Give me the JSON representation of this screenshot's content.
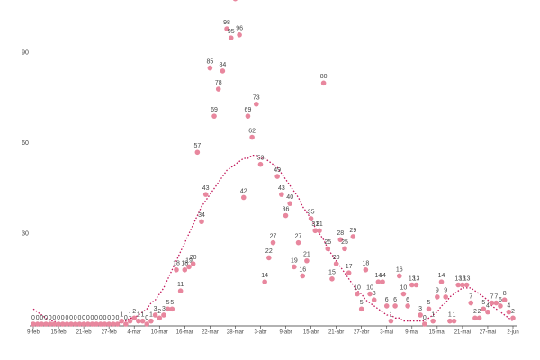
{
  "chart_data": {
    "type": "scatter",
    "categories": [
      "9-feb",
      null,
      null,
      null,
      null,
      null,
      "15-feb",
      null,
      null,
      null,
      null,
      null,
      "21-feb",
      null,
      null,
      null,
      null,
      null,
      "27-feb",
      null,
      null,
      null,
      null,
      null,
      "4-mar",
      null,
      null,
      null,
      null,
      null,
      "10-mar",
      null,
      null,
      null,
      null,
      null,
      "16-mar",
      null,
      null,
      null,
      null,
      null,
      "22-mar",
      null,
      null,
      null,
      null,
      null,
      "28-mar",
      null,
      null,
      null,
      null,
      null,
      "3-abr",
      null,
      null,
      null,
      null,
      null,
      "9-abr",
      null,
      null,
      null,
      null,
      null,
      "15-abr",
      null,
      null,
      null,
      null,
      null,
      "21-abr",
      null,
      null,
      null,
      null,
      null,
      "27-abr",
      null,
      null,
      null,
      null,
      null,
      "3-mai",
      null,
      null,
      null,
      null,
      null,
      "9-mai",
      null,
      null,
      null,
      null,
      null,
      "15-mai",
      null,
      null,
      null,
      null,
      null,
      "21-mai",
      null,
      null,
      null,
      null,
      null,
      "27-mai",
      null,
      null,
      null,
      null,
      null,
      "2-jun"
    ],
    "series": [
      {
        "type": "scatter",
        "color": "#e8879e",
        "values": [
          0,
          0,
          0,
          0,
          0,
          0,
          0,
          0,
          0,
          0,
          0,
          0,
          0,
          0,
          0,
          0,
          0,
          0,
          0,
          0,
          0,
          1,
          0,
          1,
          2,
          1,
          1,
          0,
          1,
          3,
          2,
          3,
          5,
          5,
          18,
          11,
          18,
          19,
          20,
          57,
          34,
          43,
          85,
          69,
          78,
          84,
          98,
          95,
          108,
          96,
          42,
          69,
          62,
          73,
          53,
          14,
          22,
          27,
          49,
          43,
          36,
          40,
          19,
          27,
          16,
          21,
          35,
          31,
          31,
          80,
          25,
          15,
          20,
          28,
          25,
          17,
          29,
          10,
          5,
          18,
          10,
          8,
          14,
          14,
          6,
          1,
          6,
          16,
          10,
          6,
          13,
          13,
          3,
          0,
          5,
          1,
          9,
          14,
          9,
          1,
          1,
          13,
          13,
          13,
          7,
          2,
          2,
          5,
          4,
          7,
          7,
          6,
          8,
          4,
          2
        ]
      },
      {
        "type": "line",
        "style": "dotted",
        "color": "#c2185b",
        "values": [
          5,
          4,
          3,
          2,
          1,
          1,
          0,
          0,
          0,
          0,
          0,
          0,
          0,
          0,
          0,
          0,
          0,
          0,
          0,
          0,
          0,
          1,
          1,
          2,
          2,
          3,
          4,
          5,
          7,
          8,
          10,
          12,
          15,
          18,
          21,
          24,
          27,
          30,
          33,
          36,
          39,
          41,
          43,
          45,
          47,
          49,
          51,
          52,
          53,
          54,
          55,
          55,
          56,
          56,
          55,
          55,
          54,
          53,
          52,
          50,
          48,
          46,
          44,
          42,
          39,
          37,
          35,
          32,
          30,
          28,
          25,
          23,
          21,
          19,
          17,
          15,
          13,
          11,
          10,
          8,
          7,
          6,
          5,
          4,
          3,
          3,
          2,
          2,
          1,
          1,
          1,
          1,
          1,
          1,
          2,
          3,
          4,
          6,
          7,
          9,
          10,
          11,
          12,
          12,
          12,
          11,
          10,
          9,
          8,
          6,
          5,
          4,
          3,
          2,
          1
        ]
      }
    ],
    "ylim": [
      0,
      107
    ],
    "yticks": [
      30,
      60,
      90
    ]
  }
}
